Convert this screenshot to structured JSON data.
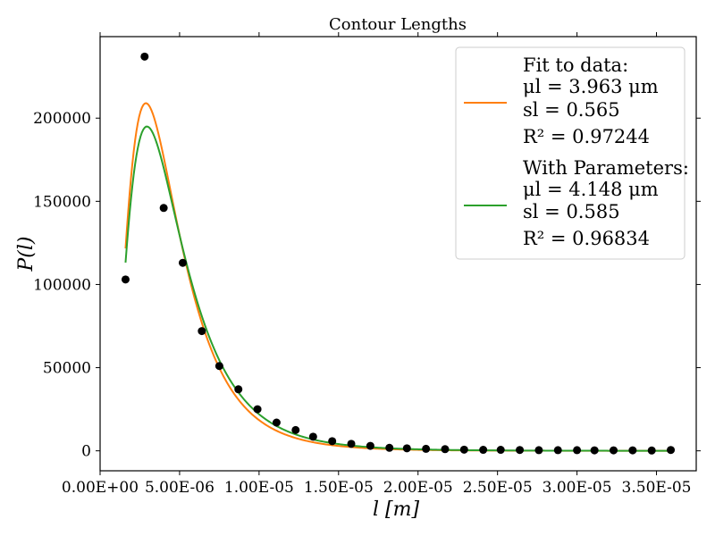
{
  "chart_data": {
    "type": "scatter",
    "title": "Contour Lengths",
    "xlabel": "l [m]",
    "ylabel": "P(l)",
    "xlim": [
      0,
      3.75e-05
    ],
    "ylim": [
      -12000,
      249000
    ],
    "xticks": [
      0,
      5e-06,
      1e-05,
      1.5e-05,
      2e-05,
      2.5e-05,
      3e-05,
      3.5e-05
    ],
    "xtick_labels": [
      "0.00E+00",
      "5.00E-06",
      "1.00E-05",
      "1.50E-05",
      "2.00E-05",
      "2.50E-05",
      "3.00E-05",
      "3.50E-05"
    ],
    "yticks": [
      0,
      50000,
      100000,
      150000,
      200000
    ],
    "ytick_labels": [
      "0",
      "50000",
      "100000",
      "150000",
      "200000"
    ],
    "grid": false,
    "legend_position": "top-right",
    "scatter_color": "#000000",
    "data_points": {
      "x": [
        1.6e-06,
        2.8e-06,
        4e-06,
        5.2e-06,
        6.4e-06,
        7.5e-06,
        8.7e-06,
        9.9e-06,
        1.11e-05,
        1.23e-05,
        1.34e-05,
        1.46e-05,
        1.58e-05,
        1.7e-05,
        1.82e-05,
        1.93e-05,
        2.05e-05,
        2.17e-05,
        2.29e-05,
        2.41e-05,
        2.52e-05,
        2.64e-05,
        2.76e-05,
        2.88e-05,
        3e-05,
        3.11e-05,
        3.23e-05,
        3.35e-05,
        3.47e-05,
        3.59e-05
      ],
      "y": [
        103000,
        237000,
        146000,
        113000,
        72000,
        51000,
        37000,
        25000,
        17000,
        12500,
        8500,
        5800,
        4200,
        3000,
        1800,
        1500,
        1200,
        1000,
        700,
        600,
        600,
        500,
        400,
        400,
        400,
        300,
        300,
        300,
        200,
        500
      ]
    },
    "fits": [
      {
        "color": "#ff7f0e",
        "mu": 3.963,
        "s": 0.565,
        "amplitude": 209000,
        "legend_lines": [
          "Fit to data:",
          "μl = 3.963 μm",
          "sl = 0.565",
          "R² = 0.97244"
        ]
      },
      {
        "color": "#2ca02c",
        "mu": 4.148,
        "s": 0.585,
        "amplitude": 195000,
        "legend_lines": [
          "With Parameters:",
          "μl = 4.148 μm",
          "sl = 0.585",
          "R² = 0.96834"
        ]
      }
    ]
  }
}
